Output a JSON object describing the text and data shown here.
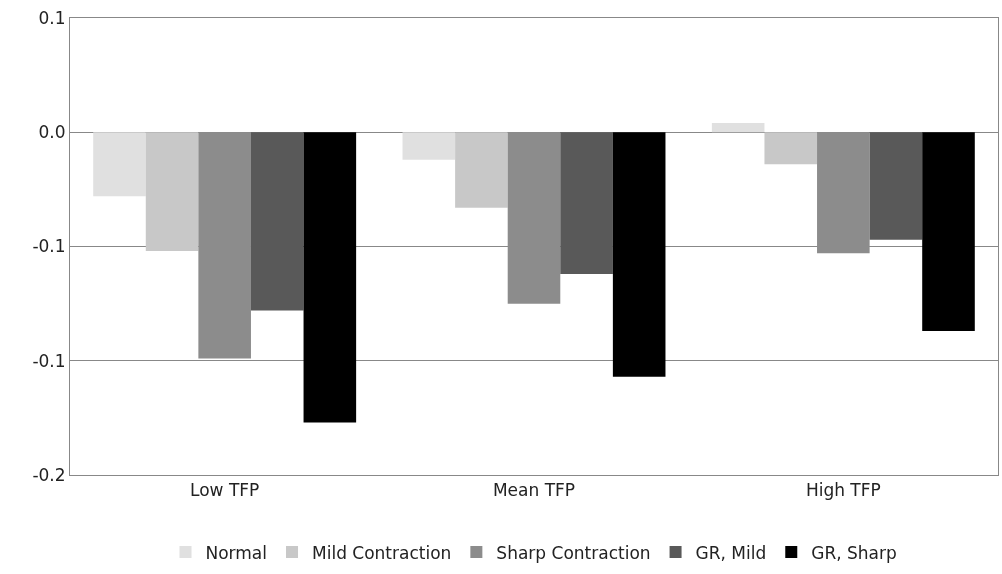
{
  "chart_data": {
    "type": "bar",
    "categories": [
      "Low TFP",
      "Mean TFP",
      "High TFP"
    ],
    "series": [
      {
        "name": "Normal",
        "color": "#e0e0e0",
        "values": [
          -0.028,
          -0.012,
          0.004
        ]
      },
      {
        "name": "Mild Contraction",
        "color": "#c8c8c8",
        "values": [
          -0.052,
          -0.033,
          -0.014
        ]
      },
      {
        "name": "Sharp Contraction",
        "color": "#8c8c8c",
        "values": [
          -0.099,
          -0.075,
          -0.053
        ]
      },
      {
        "name": "GR, Mild",
        "color": "#595959",
        "values": [
          -0.078,
          -0.062,
          -0.047
        ]
      },
      {
        "name": "GR, Sharp",
        "color": "#000000",
        "values": [
          -0.127,
          -0.107,
          -0.087
        ]
      }
    ],
    "ylim": [
      -0.15,
      0.05
    ],
    "yticks": [
      {
        "value": 0.05,
        "label": "0.1"
      },
      {
        "value": 0,
        "label": "0.0"
      },
      {
        "value": -0.05,
        "label": "-0.1"
      },
      {
        "value": -0.1,
        "label": "-0.1"
      },
      {
        "value": -0.15,
        "label": "-0.2"
      }
    ],
    "grid": "y",
    "legend": "bottom"
  }
}
